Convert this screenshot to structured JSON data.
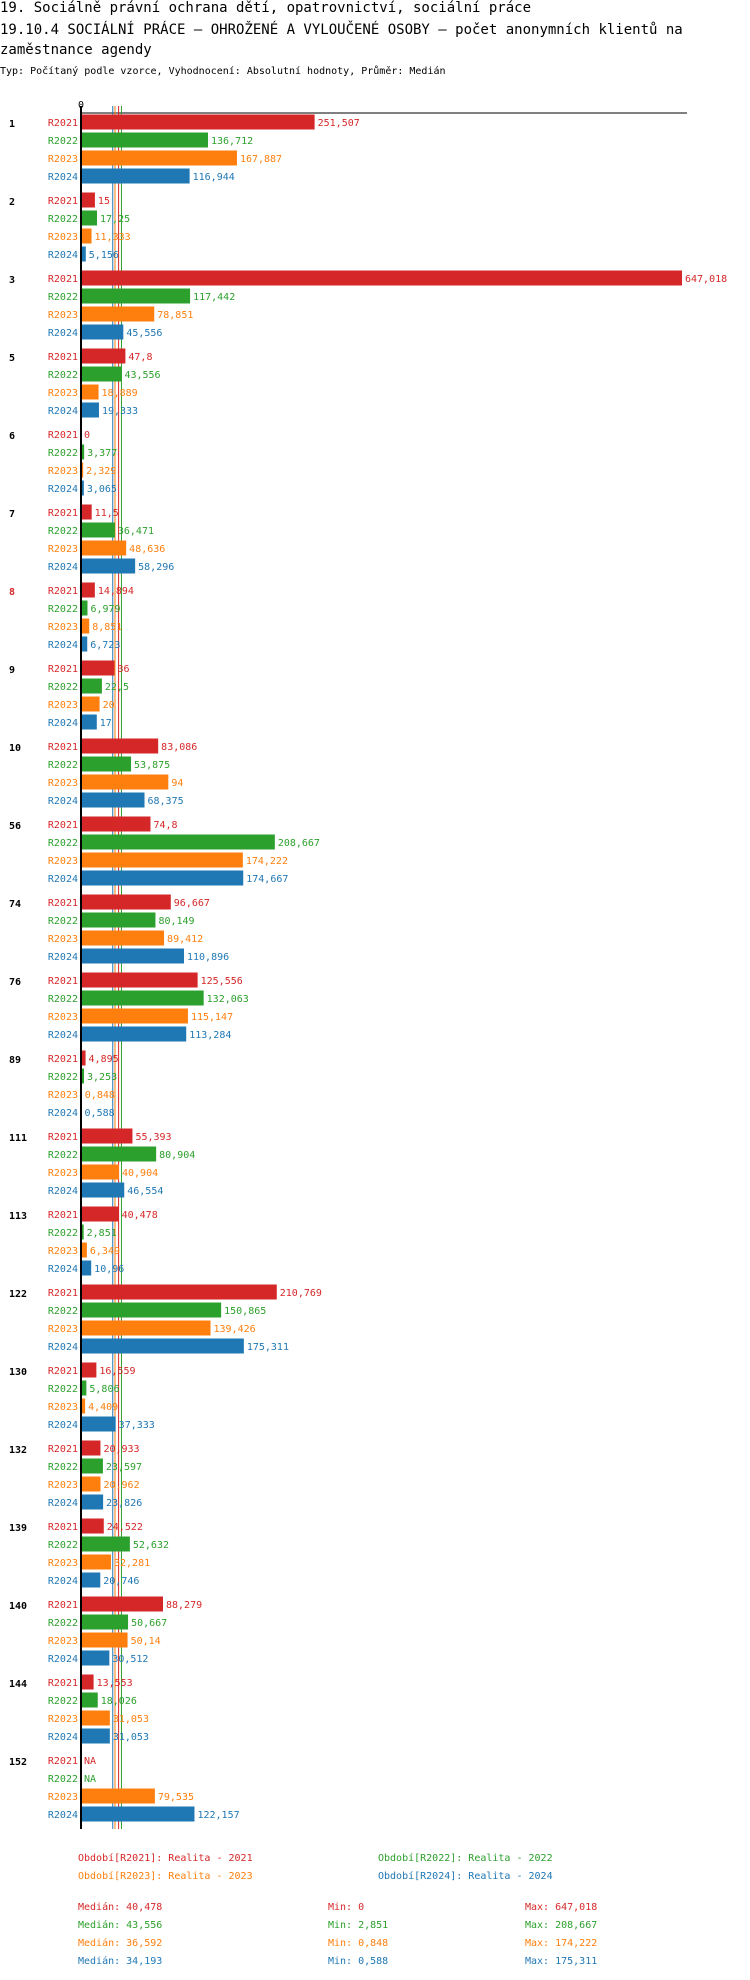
{
  "header": {
    "title_line1": "19. Sociálně právní ochrana dětí, opatrovnictví, sociální práce",
    "title_line2": "19.10.4 SOCIÁLNÍ PRÁCE – OHROŽENÉ A VYLOUČENÉ OSOBY – počet anonymních klientů na zaměstnance agendy",
    "subtitle": "Typ: Počítaný podle vzorce, Vyhodnocení: Absolutní hodnoty, Průměr: Medián"
  },
  "colors": {
    "R2021": "#d62728",
    "R2022": "#2ca02c",
    "R2023": "#ff7f0e",
    "R2024": "#1f77b4",
    "highlight_group": "#d62728"
  },
  "chart_data": {
    "type": "bar",
    "orientation": "horizontal",
    "x_axis_tick": "0",
    "xlim": [
      0,
      647.018
    ],
    "highlighted_category": "8",
    "categories": [
      "1",
      "2",
      "3",
      "5",
      "6",
      "7",
      "8",
      "9",
      "10",
      "56",
      "74",
      "76",
      "89",
      "111",
      "113",
      "122",
      "130",
      "132",
      "139",
      "140",
      "144",
      "152"
    ],
    "series": [
      {
        "name": "R2021",
        "values": [
          251.507,
          15,
          647.018,
          47.8,
          0,
          11.5,
          14.894,
          36,
          83.086,
          74.8,
          96.667,
          125.556,
          4.895,
          55.393,
          40.478,
          210.769,
          16.559,
          20.933,
          24.522,
          88.279,
          13.553,
          null
        ],
        "labels": [
          "251,507",
          "15",
          "647,018",
          "47,8",
          "0",
          "11,5",
          "14,894",
          "36",
          "83,086",
          "74,8",
          "96,667",
          "125,556",
          "4,895",
          "55,393",
          "40,478",
          "210,769",
          "16,559",
          "20,933",
          "24,522",
          "88,279",
          "13,553",
          "NA"
        ]
      },
      {
        "name": "R2022",
        "values": [
          136.712,
          17.25,
          117.442,
          43.556,
          3.377,
          36.471,
          6.979,
          22.5,
          53.875,
          208.667,
          80.149,
          132.063,
          3.253,
          80.904,
          2.851,
          150.865,
          5.806,
          23.597,
          52.632,
          50.667,
          18.026,
          null
        ],
        "labels": [
          "136,712",
          "17,25",
          "117,442",
          "43,556",
          "3,377",
          "36,471",
          "6,979",
          "22,5",
          "53,875",
          "208,667",
          "80,149",
          "132,063",
          "3,253",
          "80,904",
          "2,851",
          "150,865",
          "5,806",
          "23,597",
          "52,632",
          "50,667",
          "18,026",
          "NA"
        ]
      },
      {
        "name": "R2023",
        "values": [
          167.887,
          11.333,
          78.851,
          18.889,
          2.329,
          48.636,
          8.851,
          20,
          94,
          174.222,
          89.412,
          115.147,
          0.848,
          40.904,
          6.349,
          139.426,
          4.409,
          20.962,
          32.281,
          50.14,
          31.053,
          79.535
        ],
        "labels": [
          "167,887",
          "11,333",
          "78,851",
          "18,889",
          "2,329",
          "48,636",
          "8,851",
          "20",
          "94",
          "174,222",
          "89,412",
          "115,147",
          "0,848",
          "40,904",
          "6,349",
          "139,426",
          "4,409",
          "20,962",
          "32,281",
          "50,14",
          "31,053",
          "79,535"
        ]
      },
      {
        "name": "R2024",
        "values": [
          116.944,
          5.156,
          45.556,
          19.333,
          3.065,
          58.296,
          6.723,
          17,
          68.375,
          174.667,
          110.896,
          113.284,
          0.588,
          46.554,
          10.96,
          175.311,
          37.333,
          23.826,
          20.746,
          30.512,
          31.053,
          122.157
        ],
        "labels": [
          "116,944",
          "5,156",
          "45,556",
          "19,333",
          "3,065",
          "58,296",
          "6,723",
          "17",
          "68,375",
          "174,667",
          "110,896",
          "113,284",
          "0,588",
          "46,554",
          "10,96",
          "175,311",
          "37,333",
          "23,826",
          "20,746",
          "30,512",
          "31,053",
          "122,157"
        ]
      }
    ],
    "reference_lines": [
      {
        "series": "R2021",
        "value": 40.478
      },
      {
        "series": "R2022",
        "value": 43.556
      },
      {
        "series": "R2023",
        "value": 36.592
      },
      {
        "series": "R2024",
        "value": 34.193
      }
    ],
    "legend": [
      {
        "series": "R2021",
        "text": "Období[R2021]: Realita - 2021"
      },
      {
        "series": "R2022",
        "text": "Období[R2022]: Realita - 2022"
      },
      {
        "series": "R2023",
        "text": "Období[R2023]: Realita - 2023"
      },
      {
        "series": "R2024",
        "text": "Období[R2024]: Realita - 2024"
      }
    ],
    "stats": [
      {
        "series": "R2021",
        "median": "Medián: 40,478",
        "min": "Min: 0",
        "max": "Max: 647,018"
      },
      {
        "series": "R2022",
        "median": "Medián: 43,556",
        "min": "Min: 2,851",
        "max": "Max: 208,667"
      },
      {
        "series": "R2023",
        "median": "Medián: 36,592",
        "min": "Min: 0,848",
        "max": "Max: 174,222"
      },
      {
        "series": "R2024",
        "median": "Medián: 34,193",
        "min": "Min: 0,588",
        "max": "Max: 175,311"
      }
    ]
  }
}
